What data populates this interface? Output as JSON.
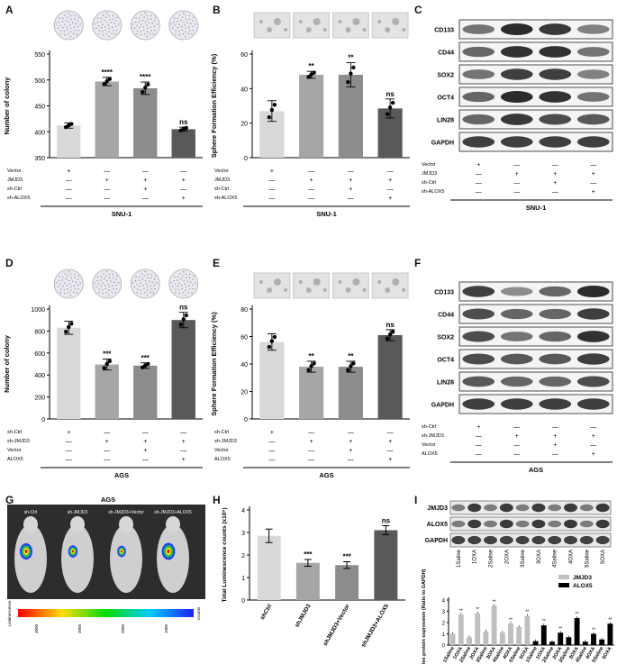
{
  "panel_letters": [
    "A",
    "B",
    "C",
    "D",
    "E",
    "F",
    "G",
    "H",
    "I"
  ],
  "chart_data": [
    {
      "panel": "A",
      "type": "bar",
      "ylabel": "Number of colony",
      "ylim": [
        350,
        550
      ],
      "yticks": [
        350,
        400,
        450,
        500,
        550
      ],
      "values": [
        412,
        497,
        484,
        405
      ],
      "errors": [
        5,
        8,
        12,
        4
      ],
      "sig": [
        "",
        "****",
        "****",
        "ns"
      ],
      "colors": [
        "#d9d9d9",
        "#a6a6a6",
        "#8c8c8c",
        "#595959"
      ],
      "cond_rows": [
        "Vector",
        "JMJD3",
        "sh-Ctrl",
        "sh-ALOX5"
      ],
      "cond": [
        [
          "+",
          "—",
          "—",
          "—"
        ],
        [
          "—",
          "+",
          "+",
          "+"
        ],
        [
          "—",
          "—",
          "+",
          "—"
        ],
        [
          "—",
          "—",
          "—",
          "+"
        ]
      ],
      "group": "SNU-1"
    },
    {
      "panel": "B",
      "type": "bar",
      "ylabel": "Sphere Formation Efficiency (%)",
      "ylim": [
        0,
        60
      ],
      "yticks": [
        0,
        20,
        40,
        60
      ],
      "values": [
        27,
        48,
        48,
        28.5
      ],
      "errors": [
        6,
        2,
        7,
        5.5
      ],
      "sig": [
        "",
        "**",
        "**",
        "ns"
      ],
      "colors": [
        "#d9d9d9",
        "#a6a6a6",
        "#8c8c8c",
        "#595959"
      ],
      "cond_rows": [
        "Vector",
        "JMJD3",
        "sh-Ctrl",
        "sh-ALOX5"
      ],
      "cond": [
        [
          "+",
          "—",
          "—",
          "—"
        ],
        [
          "—",
          "+",
          "+",
          "+"
        ],
        [
          "—",
          "—",
          "+",
          "—"
        ],
        [
          "—",
          "—",
          "—",
          "+"
        ]
      ],
      "group": "SNU-1"
    },
    {
      "panel": "D",
      "type": "bar",
      "ylabel": "Number of colony",
      "ylim": [
        0,
        1000
      ],
      "yticks": [
        0,
        200,
        400,
        600,
        800,
        1000
      ],
      "values": [
        830,
        495,
        485,
        900
      ],
      "errors": [
        60,
        50,
        25,
        70
      ],
      "sig": [
        "",
        "***",
        "***",
        "ns"
      ],
      "colors": [
        "#d9d9d9",
        "#a6a6a6",
        "#8c8c8c",
        "#595959"
      ],
      "cond_rows": [
        "sh-Ctrl",
        "sh-JMJD3",
        "Vector",
        "ALOX5"
      ],
      "cond": [
        [
          "+",
          "—",
          "—",
          "—"
        ],
        [
          "—",
          "+",
          "+",
          "+"
        ],
        [
          "—",
          "—",
          "+",
          "—"
        ],
        [
          "—",
          "—",
          "—",
          "+"
        ]
      ],
      "group": "AGS"
    },
    {
      "panel": "E",
      "type": "bar",
      "ylabel": "Sphere Formation Efficiency (%)",
      "ylim": [
        0,
        80
      ],
      "yticks": [
        0,
        20,
        40,
        60,
        80
      ],
      "values": [
        56,
        38,
        38,
        61
      ],
      "errors": [
        6,
        4,
        4,
        4
      ],
      "sig": [
        "",
        "**",
        "**",
        "ns"
      ],
      "colors": [
        "#d9d9d9",
        "#a6a6a6",
        "#8c8c8c",
        "#595959"
      ],
      "cond_rows": [
        "sh-Ctrl",
        "sh-JMJD3",
        "Vector",
        "ALOX5"
      ],
      "cond": [
        [
          "+",
          "—",
          "—",
          "—"
        ],
        [
          "—",
          "+",
          "+",
          "+"
        ],
        [
          "—",
          "—",
          "+",
          "—"
        ],
        [
          "—",
          "—",
          "—",
          "+"
        ]
      ],
      "group": "AGS"
    },
    {
      "panel": "H",
      "type": "bar",
      "ylabel": "Total Luminescence counts (x10⁶)",
      "ylim": [
        0,
        4
      ],
      "yticks": [
        0,
        1,
        2,
        3,
        4
      ],
      "categories": [
        "shCtrl",
        "shJMJD3",
        "shJMJD3+Vector",
        "shJMJD3+ALOX5"
      ],
      "values": [
        2.85,
        1.65,
        1.55,
        3.1
      ],
      "errors": [
        0.3,
        0.15,
        0.15,
        0.2
      ],
      "sig": [
        "",
        "***",
        "***",
        "ns"
      ],
      "colors": [
        "#d9d9d9",
        "#a6a6a6",
        "#8c8c8c",
        "#595959"
      ]
    },
    {
      "panel": "I",
      "type": "bar",
      "ylabel": "Relative protein expression (Ratio to GAPDH)",
      "ylim": [
        0,
        4
      ],
      "yticks": [
        0,
        1,
        2,
        3,
        4
      ],
      "categories": [
        "1Saline",
        "1OXA",
        "2Saline",
        "2OXA",
        "3Saline",
        "3OXA",
        "4Saline",
        "4OXA",
        "5Saline",
        "5OXA"
      ],
      "series": [
        {
          "name": "JMJD3",
          "color": "#bfbfbf",
          "values": [
            1.0,
            2.7,
            0.7,
            2.8,
            1.2,
            3.5,
            1.1,
            1.9,
            1.6,
            2.6
          ]
        },
        {
          "name": "ALOX5",
          "color": "#000000",
          "values": [
            0.35,
            1.75,
            0.3,
            1.1,
            0.7,
            2.4,
            0.3,
            1.0,
            0.5,
            1.9
          ]
        }
      ],
      "sig_label": "**",
      "legend_position": "top-right"
    }
  ],
  "blots": [
    {
      "panel": "C",
      "bands": [
        "CD133",
        "CD44",
        "SOX2",
        "OCT4",
        "LIN28",
        "GAPDH"
      ],
      "cond_rows": [
        "Vector",
        "JMJD3",
        "sh-Ctrl",
        "sh-ALOX5"
      ],
      "group": "SNU-1"
    },
    {
      "panel": "F",
      "bands": [
        "CD133",
        "CD44",
        "SOX2",
        "OCT4",
        "LIN28",
        "GAPDH"
      ],
      "cond_rows": [
        "sh-Ctrl",
        "sh-JMJD3",
        "Vector",
        "ALOX5"
      ],
      "group": "AGS"
    },
    {
      "panel": "I",
      "bands": [
        "JMJD3",
        "ALOX5",
        "GAPDH"
      ]
    }
  ],
  "panelG": {
    "title": "AGS",
    "mice": [
      "sh-Ctrl",
      "sh-JMJD3",
      "sh-JMJD3+Vector",
      "sh-JMJD3+ALOX5"
    ],
    "scale_ticks": [
      "4000",
      "3000",
      "2000",
      "1000"
    ],
    "scale_left": "Luminescence",
    "scale_right": "Counts"
  }
}
